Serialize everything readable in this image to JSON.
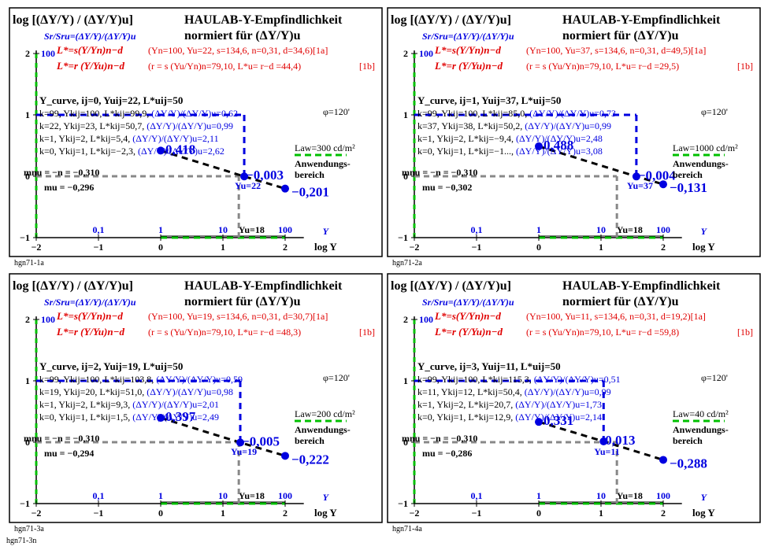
{
  "figure_id": "hgn71-3n",
  "colors": {
    "blue": "#0000e0",
    "red": "#e00000",
    "green": "#00c000",
    "gray": "#888888",
    "black": "#000000"
  },
  "common": {
    "ylabel_html": "log [(ΔY/Y) / (ΔY/Y)u]",
    "title1": "HAULAB-Y-Empfindlichkeit",
    "title2": "normiert für (ΔY/Y)u",
    "sr_line": "Sr/Sru=(ΔY/Y)/(ΔY/Y)u",
    "y_ticks": [
      "2",
      "1",
      "0",
      "−1"
    ],
    "y_100": "100",
    "x_ticks": [
      "−2",
      "−1",
      "0",
      "1",
      "2"
    ],
    "x_ylabels": [
      "0,1",
      "1",
      "10"
    ],
    "xu_label": "Yu=18",
    "x100": "100",
    "Y_letter": "Y",
    "x_axis_label": "log Y",
    "mnu": "mnu = −n = −0,310",
    "phi": "φ=120'",
    "anw1": "Anwendungs-",
    "anw2": "bereich",
    "la_unit": "cd/m²"
  },
  "panels": [
    {
      "caption": "hgn71-1a",
      "yu": 22,
      "d": "34,6",
      "rd": "44,4",
      "mu": "−0,296",
      "la": "300",
      "curve": "Y_curve, ij=0, Yuij=22, L*uij=50",
      "rows": [
        "k=99, Ykij=100, L*kij=99,9, (ΔY/Y)/(ΔY/Y)u=0,62",
        "k=22, Ykij=23, L*kij=50,7, (ΔY/Y)/(ΔY/Y)u=0,99",
        "k=1, Ykij=2, L*kij=5,4, (ΔY/Y)/(ΔY/Y)u=2,11",
        "k=0, Ykij=1, L*kij=−2,3, (ΔY/Y)/(ΔY/Y)u=2,62"
      ],
      "val_left": "0,418",
      "val_mid": "−0,003",
      "val_right": "−0,201"
    },
    {
      "caption": "hgn71-2a",
      "yu": 37,
      "d": "49,5",
      "rd": "29,5",
      "mu": "−0,302",
      "la": "1000",
      "curve": "Y_curve, ij=1, Yuij=37, L*uij=50",
      "rows": [
        "k=99, Ykij=100, L*kij=85,0, (ΔY/Y)/(ΔY/Y)u=0,73",
        "k=37, Ykij=38, L*kij=50,2, (ΔY/Y)/(ΔY/Y)u=0,99",
        "k=1, Ykij=2, L*kij=−9,4, (ΔY/Y)/(ΔY/Y)u=2,48",
        "k=0, Ykij=1, L*kij=−1..., (ΔY/Y)/(ΔY/Y)u=3,08"
      ],
      "val_left": "0,488",
      "val_mid": "−0,004",
      "val_right": "−0,131"
    },
    {
      "caption": "hgn71-3a",
      "yu": 19,
      "d": "30,7",
      "rd": "48,3",
      "mu": "−0,294",
      "la": "200",
      "curve": "Y_curve, ij=2, Yuij=19, L*uij=50",
      "rows": [
        "k=99, Ykij=100, L*kij=103,8, (ΔY/Y)/(ΔY/Y)u=0,59",
        "k=19, Ykij=20, L*kij=51,0, (ΔY/Y)/(ΔY/Y)u=0,98",
        "k=1, Ykij=2, L*kij=9,3, (ΔY/Y)/(ΔY/Y)u=2,01",
        "k=0, Ykij=1, L*kij=1,5, (ΔY/Y)/(ΔY/Y)u=2,49"
      ],
      "val_left": "0,397",
      "val_mid": "−0,005",
      "val_right": "−0,222"
    },
    {
      "caption": "hgn71-4a",
      "yu": 11,
      "d": "19,2",
      "rd": "59,8",
      "mu": "−0,286",
      "la": "40",
      "curve": "Y_curve, ij=3, Yuij=11, L*uij=50",
      "rows": [
        "k=99, Ykij=100, L*kij=115,3, (ΔY/Y)/(ΔY/Y)u=0,51",
        "k=11, Ykij=12, L*kij=50,4, (ΔY/Y)/(ΔY/Y)u=0,99",
        "k=1, Ykij=2, L*kij=20,7, (ΔY/Y)/(ΔY/Y)u=1,73",
        "k=0, Ykij=1, L*kij=12,9, (ΔY/Y)/(ΔY/Y)u=2,14"
      ],
      "val_left": "0,331",
      "val_mid": "0,013",
      "val_right": "−0,288"
    }
  ]
}
